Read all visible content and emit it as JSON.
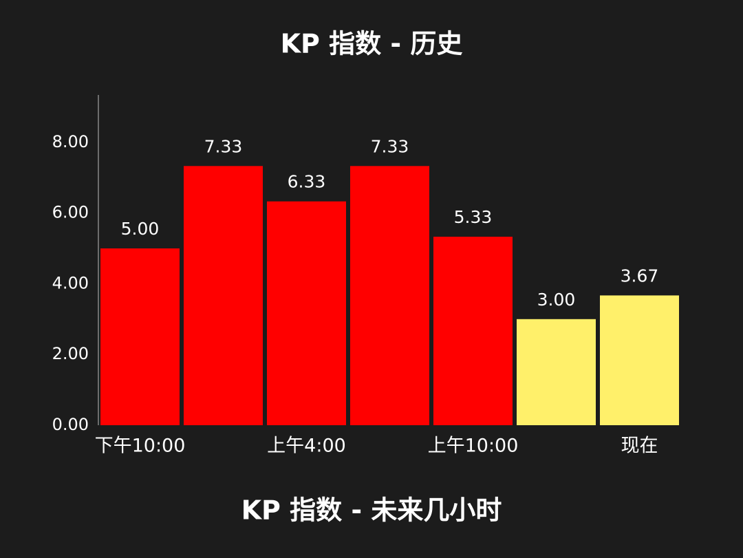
{
  "chart_data": {
    "type": "bar",
    "title": "KP 指数 - 历史",
    "next_title": "KP 指数 - 未来几小时",
    "categories": [
      "下午10:00",
      null,
      "上午4:00",
      null,
      "上午10:00",
      null,
      "现在"
    ],
    "values": [
      5.0,
      7.33,
      6.33,
      7.33,
      5.33,
      3.0,
      3.67
    ],
    "value_labels": [
      "5.00",
      "7.33",
      "6.33",
      "7.33",
      "5.33",
      "3.00",
      "3.67"
    ],
    "colors": [
      "#ff0000",
      "#ff0000",
      "#ff0000",
      "#ff0000",
      "#ff0000",
      "#fff06a",
      "#fff06a"
    ],
    "ylim": [
      0,
      9.34
    ],
    "yticks": [
      {
        "value": 0,
        "label": "0.00"
      },
      {
        "value": 2,
        "label": "2.00"
      },
      {
        "value": 4,
        "label": "4.00"
      },
      {
        "value": 6,
        "label": "6.00"
      },
      {
        "value": 8,
        "label": "8.00"
      }
    ],
    "grid": false
  }
}
